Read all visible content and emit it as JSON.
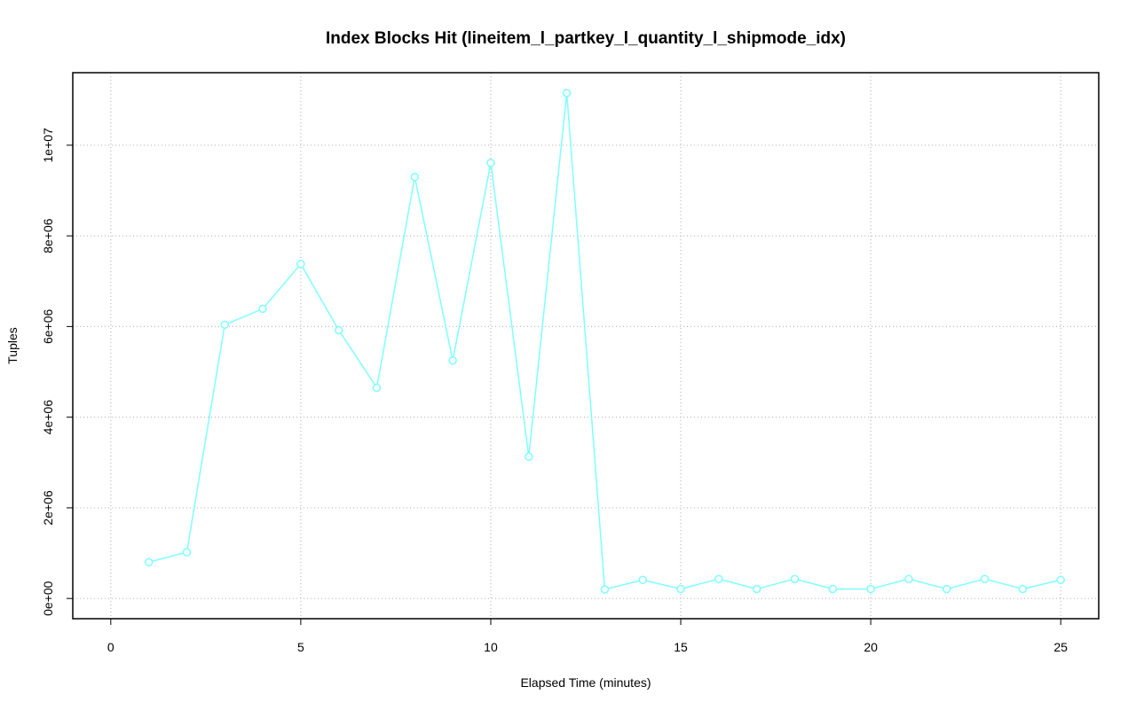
{
  "chart_data": {
    "type": "line",
    "title": "Index Blocks Hit (lineitem_l_partkey_l_quantity_l_shipmode_idx)",
    "x_label": "Elapsed Time (minutes)",
    "y_label": "Tuples",
    "x": [
      1,
      2,
      3,
      4,
      5,
      6,
      7,
      8,
      9,
      10,
      11,
      12,
      13,
      14,
      15,
      16,
      17,
      18,
      19,
      20,
      21,
      22,
      23,
      24,
      25
    ],
    "series": [
      {
        "color": "#7fffff",
        "values": [
          800000,
          1020000,
          6040000,
          6390000,
          7380000,
          5920000,
          4650000,
          9300000,
          5250000,
          9610000,
          3130000,
          11150000,
          200000,
          410000,
          210000,
          430000,
          210000,
          430000,
          210000,
          210000,
          430000,
          210000,
          430000,
          210000,
          410000
        ]
      }
    ],
    "xlim": [
      -1,
      26
    ],
    "ylim": [
      -446000,
      11600000
    ],
    "xticks": [
      0,
      5,
      10,
      15,
      20,
      25
    ],
    "yticks": [
      {
        "value": 0,
        "label": "0e+00"
      },
      {
        "value": 2000000,
        "label": "2e+06"
      },
      {
        "value": 4000000,
        "label": "4e+06"
      },
      {
        "value": 6000000,
        "label": "6e+06"
      },
      {
        "value": 8000000,
        "label": "8e+06"
      },
      {
        "value": 10000000,
        "label": "1e+07"
      }
    ],
    "grid": true
  }
}
